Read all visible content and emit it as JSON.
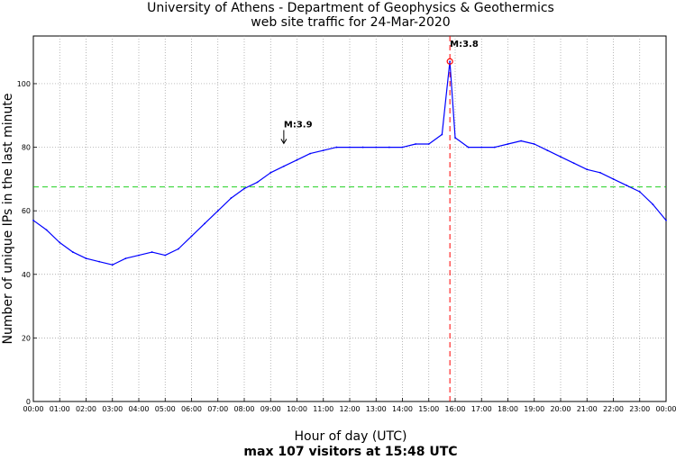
{
  "chart_data": {
    "type": "line",
    "title": "University of Athens - Department of Geophysics & Geothermics",
    "subtitle": "web site traffic for 24-Mar-2020",
    "xlabel": "Hour of day (UTC)",
    "xlabel_sub": "max 107 visitors at 15:48 UTC",
    "ylabel": "Number of unique IPs in the last minute",
    "xlim": [
      0,
      24
    ],
    "ylim": [
      0,
      115
    ],
    "grid": true,
    "x_tick_labels": [
      "00:00",
      "01:00",
      "02:00",
      "03:00",
      "04:00",
      "05:00",
      "06:00",
      "07:00",
      "08:00",
      "09:00",
      "10:00",
      "11:00",
      "12:00",
      "13:00",
      "14:00",
      "15:00",
      "16:00",
      "17:00",
      "18:00",
      "19:00",
      "20:00",
      "21:00",
      "22:00",
      "23:00",
      "00:00"
    ],
    "y_ticks": [
      0,
      20,
      40,
      60,
      80,
      100
    ],
    "series": [
      {
        "color": "#0000ff",
        "x": [
          0,
          0.5,
          1,
          1.5,
          2,
          2.5,
          3,
          3.5,
          4,
          4.5,
          5,
          5.5,
          6,
          6.5,
          7,
          7.5,
          8,
          8.5,
          9,
          9.5,
          10,
          10.5,
          11,
          11.5,
          12,
          12.5,
          13,
          13.5,
          14,
          14.5,
          15,
          15.5,
          15.8,
          16,
          16.5,
          17,
          17.5,
          18,
          18.5,
          19,
          19.5,
          20,
          20.5,
          21,
          21.5,
          22,
          22.5,
          23,
          23.5,
          24
        ],
        "values": [
          57,
          54,
          50,
          47,
          45,
          44,
          43,
          45,
          46,
          47,
          46,
          48,
          52,
          56,
          60,
          64,
          67,
          69,
          72,
          74,
          76,
          78,
          79,
          80,
          80,
          80,
          80,
          80,
          80,
          81,
          81,
          84,
          107,
          83,
          80,
          80,
          80,
          81,
          82,
          81,
          79,
          77,
          75,
          73,
          72,
          70,
          68,
          66,
          62,
          57
        ]
      }
    ],
    "reference_lines": [
      {
        "orientation": "horizontal",
        "y": 67.5,
        "color": "#00cc00",
        "style": "dashed"
      },
      {
        "orientation": "vertical",
        "x": 15.8,
        "color": "#ff0000",
        "style": "dashed"
      }
    ],
    "annotations": [
      {
        "label": "M:3.9",
        "x": 9.5,
        "y": 84,
        "marker": "arrow"
      },
      {
        "label": "M:3.8",
        "x": 15.8,
        "y": 107,
        "marker": "circle"
      }
    ]
  }
}
